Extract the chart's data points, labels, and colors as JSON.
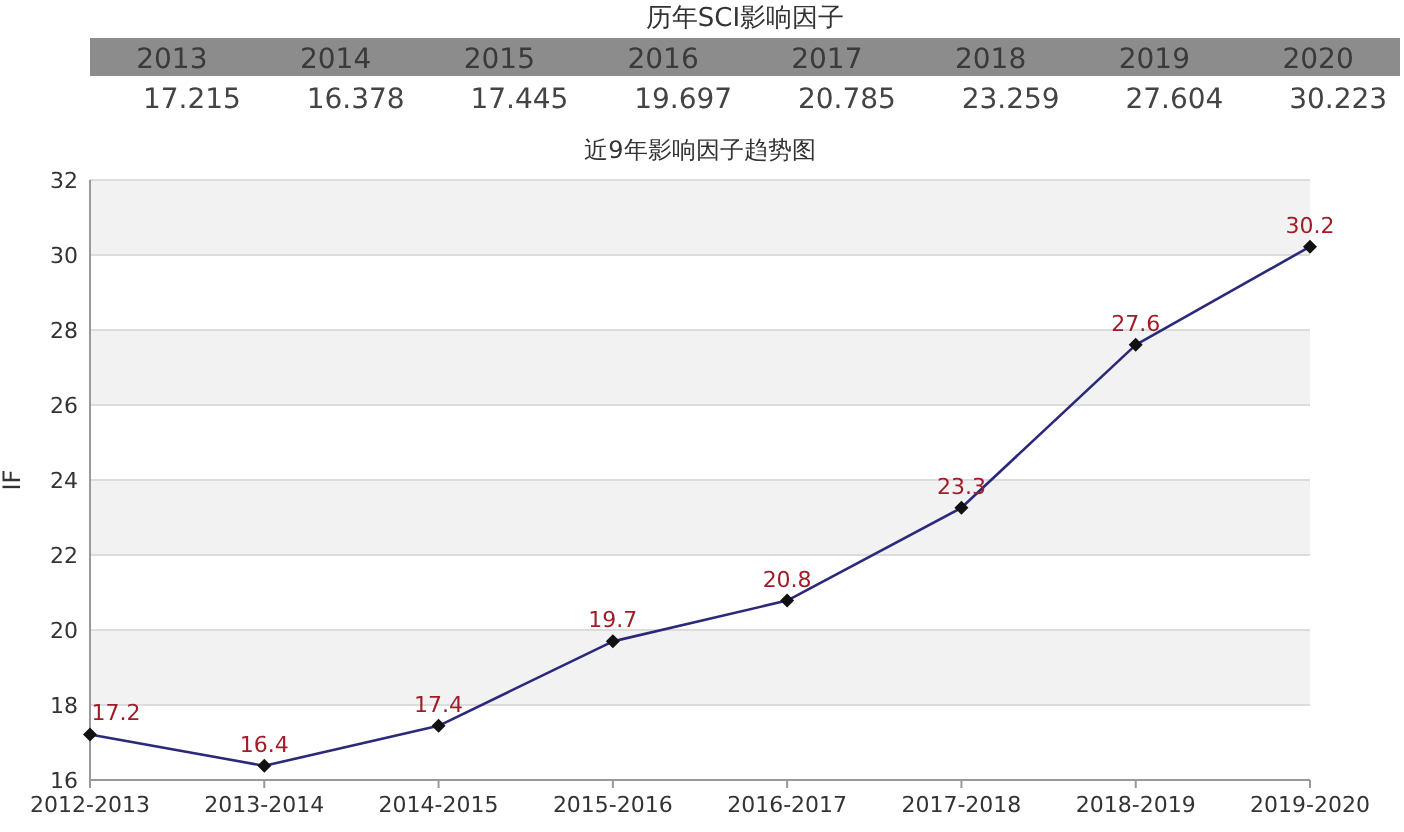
{
  "chart_data": [
    {
      "type": "heatmap",
      "title": "历年SCI影响因子",
      "categories": [
        "2013",
        "2014",
        "2015",
        "2016",
        "2017",
        "2018",
        "2019",
        "2020"
      ],
      "y_categories": [
        null
      ],
      "cells": [
        [
          17.215,
          16.378,
          17.445,
          19.697,
          20.785,
          23.259,
          27.604,
          30.223
        ]
      ],
      "data_labels": true
    },
    {
      "type": "line",
      "title": "近9年影响因子趋势图",
      "ylabel": "IF",
      "categories": [
        "2012-2013",
        "2013-2014",
        "2014-2015",
        "2015-2016",
        "2016-2017",
        "2017-2018",
        "2018-2019",
        "2019-2020"
      ],
      "series": [
        {
          "color": "#2b2a7a",
          "values": [
            17.215,
            16.378,
            17.445,
            19.697,
            20.785,
            23.259,
            27.604,
            30.223
          ],
          "value_labels": [
            "17.2",
            "16.4",
            "17.4",
            "19.7",
            "20.8",
            "23.3",
            "27.6",
            "30.2"
          ]
        }
      ],
      "ylim": [
        16,
        32
      ],
      "yticks": [
        16,
        18,
        20,
        22,
        24,
        26,
        28,
        30,
        32
      ],
      "grid": "y",
      "marker": "diamond"
    }
  ]
}
